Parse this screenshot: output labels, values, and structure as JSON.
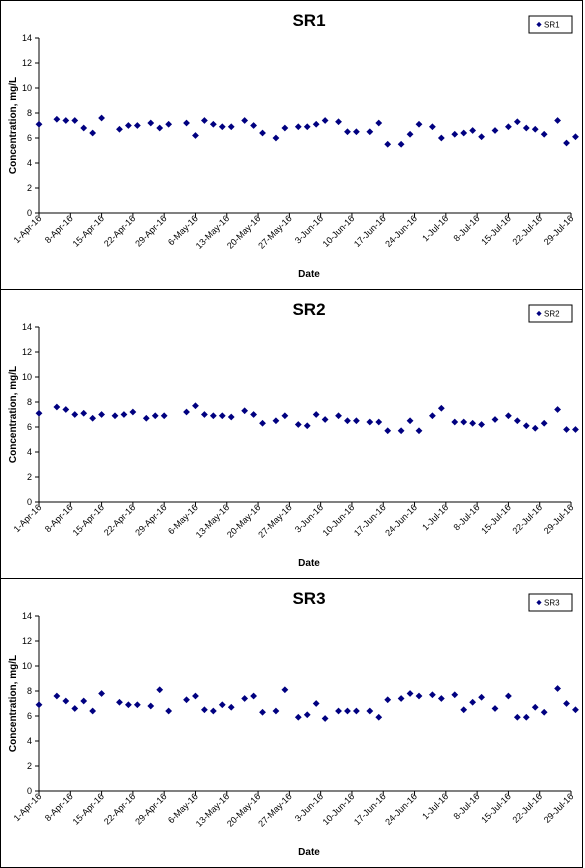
{
  "chart_data": [
    {
      "type": "scatter",
      "title": "SR1",
      "xlabel": "Date",
      "ylabel": "Concentration, mg/L",
      "ylim": [
        0,
        14
      ],
      "yticks": [
        "0",
        "2",
        "4",
        "6",
        "8",
        "10",
        "12",
        "14"
      ],
      "xlim": [
        "2016-04-01",
        "2016-07-29"
      ],
      "xticks": [
        "1-Apr-16",
        "8-Apr-16",
        "15-Apr-16",
        "22-Apr-16",
        "29-Apr-16",
        "6-May-16",
        "13-May-16",
        "20-May-16",
        "27-May-16",
        "3-Jun-16",
        "10-Jun-16",
        "17-Jun-16",
        "24-Jun-16",
        "1-Jul-16",
        "8-Jul-16",
        "15-Jul-16",
        "22-Jul-16",
        "29-Jul-16"
      ],
      "grid": false,
      "legend": "top-right",
      "marker_color": "#000080",
      "series": [
        {
          "name": "SR1",
          "x": [
            "2016-04-01",
            "2016-04-05",
            "2016-04-07",
            "2016-04-09",
            "2016-04-11",
            "2016-04-13",
            "2016-04-15",
            "2016-04-19",
            "2016-04-21",
            "2016-04-23",
            "2016-04-26",
            "2016-04-28",
            "2016-04-30",
            "2016-05-04",
            "2016-05-06",
            "2016-05-08",
            "2016-05-10",
            "2016-05-12",
            "2016-05-14",
            "2016-05-17",
            "2016-05-19",
            "2016-05-21",
            "2016-05-24",
            "2016-05-26",
            "2016-05-29",
            "2016-05-31",
            "2016-06-02",
            "2016-06-04",
            "2016-06-07",
            "2016-06-09",
            "2016-06-11",
            "2016-06-14",
            "2016-06-16",
            "2016-06-18",
            "2016-06-21",
            "2016-06-23",
            "2016-06-25",
            "2016-06-28",
            "2016-06-30",
            "2016-07-03",
            "2016-07-05",
            "2016-07-07",
            "2016-07-09",
            "2016-07-12",
            "2016-07-15",
            "2016-07-17",
            "2016-07-19",
            "2016-07-21",
            "2016-07-23",
            "2016-07-26",
            "2016-07-28",
            "2016-07-30"
          ],
          "y": [
            7.1,
            7.5,
            7.4,
            7.4,
            6.8,
            6.4,
            7.6,
            6.7,
            7.0,
            7.0,
            7.2,
            6.8,
            7.1,
            7.2,
            6.2,
            7.4,
            7.1,
            6.9,
            6.9,
            7.4,
            7.0,
            6.4,
            6.0,
            6.8,
            6.9,
            6.9,
            7.1,
            7.4,
            7.3,
            6.5,
            6.5,
            6.5,
            7.2,
            5.5,
            5.5,
            6.3,
            7.1,
            6.9,
            6.0,
            6.3,
            6.4,
            6.6,
            6.1,
            6.6,
            6.9,
            7.3,
            6.8,
            6.7,
            6.3,
            7.4,
            5.6,
            6.1
          ]
        }
      ]
    },
    {
      "type": "scatter",
      "title": "SR2",
      "xlabel": "Date",
      "ylabel": "Concentration, mg/L",
      "ylim": [
        0,
        14
      ],
      "yticks": [
        "0",
        "2",
        "4",
        "6",
        "8",
        "10",
        "12",
        "14"
      ],
      "xlim": [
        "2016-04-01",
        "2016-07-29"
      ],
      "xticks": [
        "1-Apr-16",
        "8-Apr-16",
        "15-Apr-16",
        "22-Apr-16",
        "29-Apr-16",
        "6-May-16",
        "13-May-16",
        "20-May-16",
        "27-May-16",
        "3-Jun-16",
        "10-Jun-16",
        "17-Jun-16",
        "24-Jun-16",
        "1-Jul-16",
        "8-Jul-16",
        "15-Jul-16",
        "22-Jul-16",
        "29-Jul-16"
      ],
      "grid": false,
      "legend": "top-right",
      "marker_color": "#000080",
      "series": [
        {
          "name": "SR2",
          "x": [
            "2016-04-01",
            "2016-04-05",
            "2016-04-07",
            "2016-04-09",
            "2016-04-11",
            "2016-04-13",
            "2016-04-15",
            "2016-04-18",
            "2016-04-20",
            "2016-04-22",
            "2016-04-25",
            "2016-04-27",
            "2016-04-29",
            "2016-05-04",
            "2016-05-06",
            "2016-05-08",
            "2016-05-10",
            "2016-05-12",
            "2016-05-14",
            "2016-05-17",
            "2016-05-19",
            "2016-05-21",
            "2016-05-24",
            "2016-05-26",
            "2016-05-29",
            "2016-05-31",
            "2016-06-02",
            "2016-06-04",
            "2016-06-07",
            "2016-06-09",
            "2016-06-11",
            "2016-06-14",
            "2016-06-16",
            "2016-06-18",
            "2016-06-21",
            "2016-06-23",
            "2016-06-25",
            "2016-06-28",
            "2016-06-30",
            "2016-07-03",
            "2016-07-05",
            "2016-07-07",
            "2016-07-09",
            "2016-07-12",
            "2016-07-15",
            "2016-07-17",
            "2016-07-19",
            "2016-07-21",
            "2016-07-23",
            "2016-07-26",
            "2016-07-28",
            "2016-07-30"
          ],
          "y": [
            7.1,
            7.6,
            7.4,
            7.0,
            7.1,
            6.7,
            7.0,
            6.9,
            7.0,
            7.2,
            6.7,
            6.9,
            6.9,
            7.2,
            7.7,
            7.0,
            6.9,
            6.9,
            6.8,
            7.3,
            7.0,
            6.3,
            6.5,
            6.9,
            6.2,
            6.1,
            7.0,
            6.6,
            6.9,
            6.5,
            6.5,
            6.4,
            6.4,
            5.7,
            5.7,
            6.5,
            5.7,
            6.9,
            7.5,
            6.4,
            6.4,
            6.3,
            6.2,
            6.6,
            6.9,
            6.5,
            6.1,
            5.9,
            6.3,
            7.4,
            5.8,
            5.8
          ]
        }
      ]
    },
    {
      "type": "scatter",
      "title": "SR3",
      "xlabel": "Date",
      "ylabel": "Concentration, mg/L",
      "ylim": [
        0,
        14
      ],
      "yticks": [
        "0",
        "2",
        "4",
        "6",
        "8",
        "10",
        "12",
        "14"
      ],
      "xlim": [
        "2016-04-01",
        "2016-07-29"
      ],
      "xticks": [
        "1-Apr-16",
        "8-Apr-16",
        "15-Apr-16",
        "22-Apr-16",
        "29-Apr-16",
        "6-May-16",
        "13-May-16",
        "20-May-16",
        "27-May-16",
        "3-Jun-16",
        "10-Jun-16",
        "17-Jun-16",
        "24-Jun-16",
        "1-Jul-16",
        "8-Jul-16",
        "15-Jul-16",
        "22-Jul-16",
        "29-Jul-16"
      ],
      "grid": false,
      "legend": "top-right",
      "marker_color": "#000080",
      "series": [
        {
          "name": "SR3",
          "x": [
            "2016-04-01",
            "2016-04-05",
            "2016-04-07",
            "2016-04-09",
            "2016-04-11",
            "2016-04-13",
            "2016-04-15",
            "2016-04-19",
            "2016-04-21",
            "2016-04-23",
            "2016-04-26",
            "2016-04-28",
            "2016-04-30",
            "2016-05-04",
            "2016-05-06",
            "2016-05-08",
            "2016-05-10",
            "2016-05-12",
            "2016-05-14",
            "2016-05-17",
            "2016-05-19",
            "2016-05-21",
            "2016-05-24",
            "2016-05-26",
            "2016-05-29",
            "2016-05-31",
            "2016-06-02",
            "2016-06-04",
            "2016-06-07",
            "2016-06-09",
            "2016-06-11",
            "2016-06-14",
            "2016-06-16",
            "2016-06-18",
            "2016-06-21",
            "2016-06-23",
            "2016-06-25",
            "2016-06-28",
            "2016-06-30",
            "2016-07-03",
            "2016-07-05",
            "2016-07-07",
            "2016-07-09",
            "2016-07-12",
            "2016-07-15",
            "2016-07-17",
            "2016-07-19",
            "2016-07-21",
            "2016-07-23",
            "2016-07-26",
            "2016-07-28",
            "2016-07-30"
          ],
          "y": [
            6.9,
            7.6,
            7.2,
            6.6,
            7.2,
            6.4,
            7.8,
            7.1,
            6.9,
            6.9,
            6.8,
            8.1,
            6.4,
            7.3,
            7.6,
            6.5,
            6.4,
            6.9,
            6.7,
            7.4,
            7.6,
            6.3,
            6.4,
            8.1,
            5.9,
            6.1,
            7.0,
            5.8,
            6.4,
            6.4,
            6.4,
            6.4,
            5.9,
            7.3,
            7.4,
            7.8,
            7.6,
            7.7,
            7.4,
            7.7,
            6.5,
            7.1,
            7.5,
            6.6,
            7.6,
            5.9,
            5.9,
            6.7,
            6.3,
            8.2,
            7.0,
            6.5
          ]
        }
      ]
    }
  ]
}
